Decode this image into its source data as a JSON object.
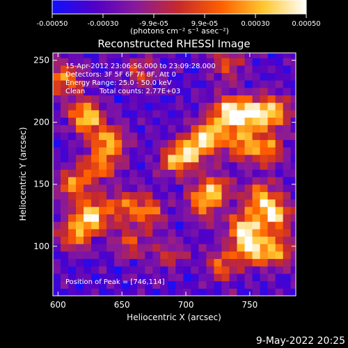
{
  "colorbar": {
    "ticks": [
      "-0.00050",
      "-0.00030",
      "-9.9e-05",
      "9.9e-05",
      "0.00030",
      "0.00050"
    ],
    "unit_label": "(photons cm⁻² s⁻¹ asec⁻²)",
    "range": [
      -0.0005,
      0.0005
    ],
    "colormap_stops": [
      "#1010ff",
      "#5000c8",
      "#8a1a9a",
      "#c82a2a",
      "#ff6000",
      "#ffc830",
      "#ffffff"
    ]
  },
  "info": {
    "time": "15-Apr-2012 23:06:56.000 to 23:09:28.000",
    "detectors": "Detectors: 3F 5F 6F 7F 8F, Att 0",
    "energy": "Energy Range: 25.0 - 50.0 keV",
    "clean_label": "Clean",
    "counts": "Total counts: 2.77E+03",
    "peak": "Position of Peak = [746,114]"
  },
  "footer": {
    "date": "9-May-2022 20:25"
  },
  "chart_data": {
    "type": "heatmap",
    "title": "Reconstructed RHESSI Image",
    "xlabel": "Heliocentric X (arcsec)",
    "ylabel": "Heliocentric Y (arcsec)",
    "xlim": [
      596,
      786
    ],
    "ylim": [
      60,
      256
    ],
    "xticks": [
      600,
      650,
      700,
      750
    ],
    "yticks": [
      100,
      150,
      200,
      250
    ],
    "peak": [
      746,
      114
    ],
    "sources": [
      {
        "x": 605,
        "y": 235,
        "amp": 0.75
      },
      {
        "x": 622,
        "y": 205,
        "amp": 1.0
      },
      {
        "x": 640,
        "y": 185,
        "amp": 0.85
      },
      {
        "x": 632,
        "y": 165,
        "amp": 0.7
      },
      {
        "x": 612,
        "y": 150,
        "amp": 0.7
      },
      {
        "x": 626,
        "y": 125,
        "amp": 1.0
      },
      {
        "x": 613,
        "y": 110,
        "amp": 0.75
      },
      {
        "x": 650,
        "y": 133,
        "amp": 0.6
      },
      {
        "x": 670,
        "y": 128,
        "amp": 0.65
      },
      {
        "x": 692,
        "y": 170,
        "amp": 0.75
      },
      {
        "x": 705,
        "y": 177,
        "amp": 0.7
      },
      {
        "x": 718,
        "y": 190,
        "amp": 0.9
      },
      {
        "x": 734,
        "y": 208,
        "amp": 1.0
      },
      {
        "x": 752,
        "y": 207,
        "amp": 0.95
      },
      {
        "x": 770,
        "y": 208,
        "amp": 0.8
      },
      {
        "x": 744,
        "y": 183,
        "amp": 0.75
      },
      {
        "x": 764,
        "y": 178,
        "amp": 0.7
      },
      {
        "x": 722,
        "y": 146,
        "amp": 0.8
      },
      {
        "x": 712,
        "y": 134,
        "amp": 0.6
      },
      {
        "x": 758,
        "y": 140,
        "amp": 0.8
      },
      {
        "x": 770,
        "y": 125,
        "amp": 0.9
      },
      {
        "x": 746,
        "y": 114,
        "amp": 1.05
      },
      {
        "x": 752,
        "y": 97,
        "amp": 0.85
      },
      {
        "x": 772,
        "y": 96,
        "amp": 0.7
      },
      {
        "x": 728,
        "y": 85,
        "amp": 0.6
      },
      {
        "x": 732,
        "y": 248,
        "amp": 0.55
      },
      {
        "x": 665,
        "y": 240,
        "amp": 0.45
      },
      {
        "x": 656,
        "y": 103,
        "amp": 0.5
      },
      {
        "x": 687,
        "y": 95,
        "amp": 0.4
      }
    ]
  }
}
